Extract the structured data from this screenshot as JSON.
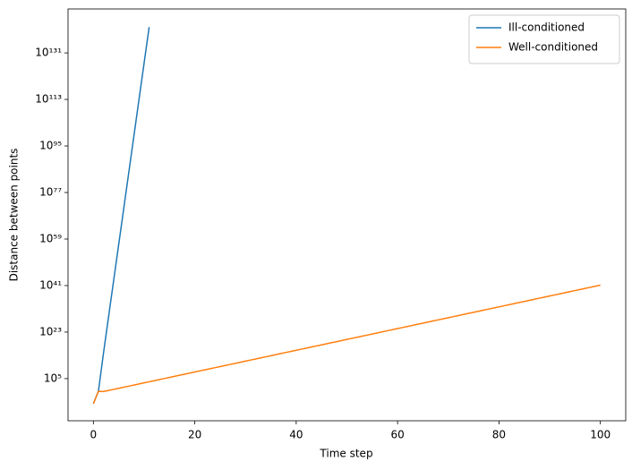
{
  "chart_data": {
    "type": "line",
    "xlabel": "Time step",
    "ylabel": "Distance between points",
    "x": [
      0,
      1,
      2,
      3,
      4,
      5,
      6,
      7,
      8,
      9,
      10,
      11,
      12,
      13,
      14,
      15,
      16,
      17,
      18,
      19,
      20,
      21,
      22,
      23,
      24,
      25,
      26,
      27,
      28,
      29,
      30,
      31,
      32,
      33,
      34,
      35,
      36,
      37,
      38,
      39,
      40,
      41,
      42,
      43,
      44,
      45,
      46,
      47,
      48,
      49,
      50,
      51,
      52,
      53,
      54,
      55,
      56,
      57,
      58,
      59,
      60,
      61,
      62,
      63,
      64,
      65,
      66,
      67,
      68,
      69,
      70,
      71,
      72,
      73,
      74,
      75,
      76,
      77,
      78,
      79,
      80,
      81,
      82,
      83,
      84,
      85,
      86,
      87,
      88,
      89,
      90,
      91,
      92,
      93,
      94,
      95,
      96,
      97,
      98,
      99,
      100
    ],
    "series": [
      {
        "name": "Ill-conditioned",
        "color": "#1f77b4",
        "values": [
          2e-05,
          1.5,
          1000000000000000.0,
          1e+29,
          1e+43,
          1e+57,
          1e+71,
          1e+85,
          1e+99,
          1e+113,
          1e+127,
          1e+141,
          null,
          null,
          null,
          null,
          null,
          null,
          null,
          null,
          null,
          null,
          null,
          null,
          null,
          null,
          null,
          null,
          null,
          null,
          null,
          null,
          null,
          null,
          null,
          null,
          null,
          null,
          null,
          null,
          null,
          null,
          null,
          null,
          null,
          null,
          null,
          null,
          null,
          null,
          null,
          null,
          null,
          null,
          null,
          null,
          null,
          null,
          null,
          null,
          null,
          null,
          null,
          null,
          null,
          null,
          null,
          null,
          null,
          null,
          null,
          null,
          null,
          null,
          null,
          null,
          null,
          null,
          null,
          null,
          null,
          null,
          null,
          null,
          null,
          null,
          null,
          null,
          null,
          null,
          null,
          null,
          null,
          null,
          null,
          null,
          null,
          null,
          null,
          null,
          null
        ]
      },
      {
        "name": "Well-conditioned",
        "color": "#ff7f0e",
        "values": [
          2e-05,
          1.2,
          1,
          2.63,
          6.92,
          18.2,
          47.9,
          126.0,
          331.0,
          871.0,
          2290.0,
          6030.0,
          15800.0,
          41700.0,
          110000.0,
          288000.0,
          759000.0,
          2000000.0,
          5250000.0,
          13800000.0,
          36300000.0,
          95500000.0,
          251000000.0,
          661000000.0,
          1740000000.0,
          4570000000.0,
          12000000000.0,
          31600000000.0,
          83200000000.0,
          219000000000.0,
          575000000000.0,
          1510000000000.0,
          3980000000000.0,
          10500000000000.0,
          27500000000000.0,
          72400000000000.0,
          191000000000000.0,
          501000000000000.0,
          1320000000000000.0,
          3470000000000000.0,
          9120000000000000.0,
          2.4e+16,
          6.31e+16,
          1.66e+17,
          4.37e+17,
          1.15e+18,
          3.02e+18,
          7.94e+18,
          2.09e+19,
          5.5e+19,
          1.45e+20,
          3.8e+20,
          1e+21,
          2.63e+21,
          6.92e+21,
          1.82e+22,
          4.79e+22,
          1.26e+23,
          3.31e+23,
          8.71e+23,
          2.29e+24,
          6.03e+24,
          1.58e+25,
          4.17e+25,
          1.1e+26,
          2.88e+26,
          7.59e+26,
          2e+27,
          5.25e+27,
          1.38e+28,
          3.63e+28,
          9.55e+28,
          2.51e+29,
          6.61e+29,
          1.74e+30,
          4.57e+30,
          1.2e+31,
          3.16e+31,
          8.32e+31,
          2.19e+32,
          5.75e+32,
          1.51e+33,
          3.98e+33,
          1.05e+34,
          2.75e+34,
          7.24e+34,
          1.91e+35,
          5.01e+35,
          1.32e+36,
          3.47e+36,
          9.12e+36,
          2.4e+37,
          6.31e+37,
          1.66e+38,
          4.37e+38,
          1.15e+39,
          3.02e+39,
          7.94e+39,
          2.09e+40,
          5.5e+40,
          1.45e+41
        ]
      }
    ],
    "xlim": [
      -5,
      105
    ],
    "xticks": [
      0,
      20,
      40,
      60,
      80,
      100
    ],
    "ylim": [
      5e-12,
      1e+148
    ],
    "ylog": true,
    "yticks": [
      {
        "value": 100000.0,
        "label": "10⁵"
      },
      {
        "value": 1e+23,
        "label": "10²³"
      },
      {
        "value": 1e+41,
        "label": "10⁴¹"
      },
      {
        "value": 1e+59,
        "label": "10⁵⁹"
      },
      {
        "value": 1e+77,
        "label": "10⁷⁷"
      },
      {
        "value": 1e+95,
        "label": "10⁹⁵"
      },
      {
        "value": 1e+113,
        "label": "10¹¹³"
      },
      {
        "value": 1e+131,
        "label": "10¹³¹"
      }
    ],
    "grid": false,
    "legend": "upper right"
  }
}
